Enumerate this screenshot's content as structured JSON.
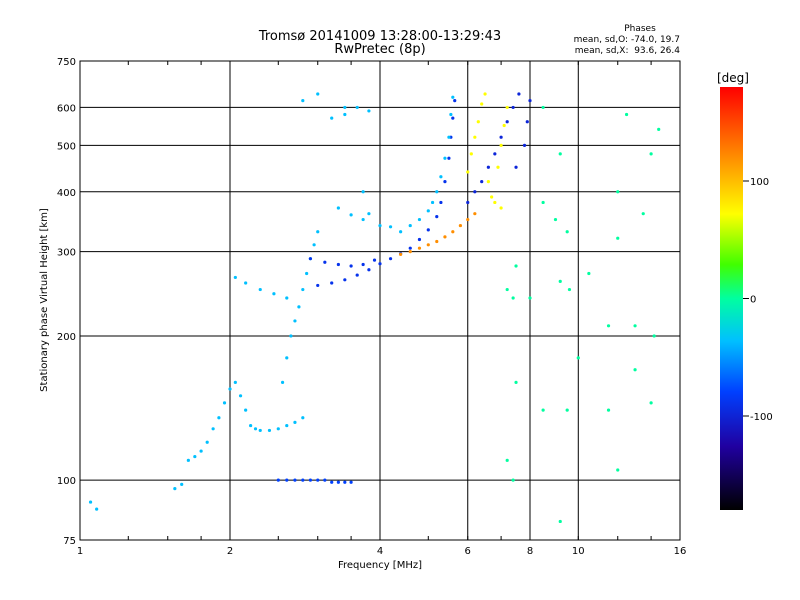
{
  "chart_data": {
    "type": "scatter",
    "title": "Tromsø 20141009 13:28:00-13:29:43",
    "subtitle": "RwPretec (8p)",
    "xlabel": "Frequency [MHz]",
    "ylabel": "Stationary phase Virtual Height [km]",
    "x_scale": "log",
    "y_scale": "log",
    "xlim": [
      1,
      16
    ],
    "ylim": [
      75,
      750
    ],
    "x_ticks": [
      1,
      2,
      4,
      6,
      8,
      10,
      16
    ],
    "y_ticks": [
      75,
      100,
      200,
      300,
      400,
      500,
      600,
      750
    ],
    "grid": true,
    "stats": {
      "heading": "Phases",
      "line_o": "mean, sd,O: -74.0, 19.7",
      "line_x": "mean, sd,X:  93.6, 26.4"
    },
    "colorbar": {
      "label": "[deg]",
      "range": [
        -180,
        180
      ],
      "ticks": [
        100,
        0,
        -100
      ],
      "colormap": "rainbow"
    },
    "series": [
      {
        "description": "O-mode low traces",
        "color_value": -40,
        "points": [
          [
            1.05,
            90
          ],
          [
            1.08,
            87
          ],
          [
            1.55,
            96
          ],
          [
            1.6,
            98
          ],
          [
            1.65,
            110
          ],
          [
            1.7,
            112
          ],
          [
            1.75,
            115
          ],
          [
            1.8,
            120
          ],
          [
            1.85,
            128
          ],
          [
            1.9,
            135
          ],
          [
            1.95,
            145
          ],
          [
            2.0,
            155
          ],
          [
            2.05,
            160
          ],
          [
            2.1,
            150
          ],
          [
            2.15,
            140
          ],
          [
            2.2,
            130
          ],
          [
            2.25,
            128
          ],
          [
            2.3,
            127
          ],
          [
            2.4,
            127
          ],
          [
            2.5,
            128
          ],
          [
            2.6,
            130
          ],
          [
            2.7,
            132
          ],
          [
            2.8,
            135
          ],
          [
            2.55,
            160
          ],
          [
            2.6,
            180
          ],
          [
            2.65,
            200
          ],
          [
            2.7,
            215
          ],
          [
            2.75,
            230
          ],
          [
            2.8,
            250
          ],
          [
            2.85,
            270
          ],
          [
            2.9,
            290
          ],
          [
            2.95,
            310
          ],
          [
            3.0,
            330
          ],
          [
            2.05,
            265
          ],
          [
            2.15,
            258
          ],
          [
            2.3,
            250
          ],
          [
            2.45,
            245
          ],
          [
            2.6,
            240
          ]
        ]
      },
      {
        "description": "E-layer flat trace",
        "color_value": -100,
        "points": [
          [
            2.5,
            100
          ],
          [
            2.6,
            100
          ],
          [
            2.7,
            100
          ],
          [
            2.8,
            100
          ],
          [
            2.9,
            100
          ],
          [
            3.0,
            100
          ],
          [
            3.1,
            100
          ],
          [
            3.2,
            99
          ],
          [
            3.3,
            99
          ],
          [
            3.4,
            99
          ],
          [
            3.5,
            99
          ]
        ]
      },
      {
        "description": "F-layer X trace",
        "color_value": -110,
        "points": [
          [
            3.0,
            255
          ],
          [
            3.2,
            258
          ],
          [
            3.4,
            262
          ],
          [
            3.6,
            268
          ],
          [
            3.8,
            275
          ],
          [
            4.0,
            283
          ],
          [
            4.2,
            290
          ],
          [
            4.4,
            297
          ],
          [
            4.6,
            305
          ],
          [
            4.8,
            318
          ],
          [
            5.0,
            333
          ],
          [
            5.2,
            355
          ],
          [
            5.3,
            380
          ],
          [
            5.4,
            420
          ],
          [
            5.5,
            470
          ],
          [
            5.55,
            520
          ],
          [
            5.6,
            570
          ],
          [
            5.65,
            620
          ],
          [
            2.9,
            290
          ],
          [
            3.1,
            285
          ],
          [
            3.3,
            282
          ],
          [
            3.5,
            280
          ],
          [
            3.7,
            282
          ],
          [
            3.9,
            288
          ]
        ]
      },
      {
        "description": "F-layer cyan traces",
        "color_value": -40,
        "points": [
          [
            4.4,
            330
          ],
          [
            4.6,
            340
          ],
          [
            4.8,
            350
          ],
          [
            5.0,
            365
          ],
          [
            5.1,
            380
          ],
          [
            5.2,
            400
          ],
          [
            5.3,
            430
          ],
          [
            5.4,
            470
          ],
          [
            5.5,
            520
          ],
          [
            5.55,
            580
          ],
          [
            5.6,
            630
          ],
          [
            3.7,
            400
          ],
          [
            3.8,
            360
          ],
          [
            4.0,
            340
          ],
          [
            4.2,
            338
          ],
          [
            3.3,
            370
          ],
          [
            3.5,
            358
          ],
          [
            3.7,
            350
          ],
          [
            3.2,
            570
          ],
          [
            3.4,
            580
          ],
          [
            3.6,
            600
          ],
          [
            3.8,
            590
          ],
          [
            2.8,
            620
          ],
          [
            3.0,
            640
          ],
          [
            3.4,
            600
          ]
        ]
      },
      {
        "description": "Orange trace",
        "color_value": 120,
        "points": [
          [
            4.4,
            296
          ],
          [
            4.6,
            300
          ],
          [
            4.8,
            305
          ],
          [
            5.0,
            310
          ],
          [
            5.2,
            315
          ],
          [
            5.4,
            322
          ],
          [
            5.6,
            330
          ],
          [
            5.8,
            340
          ],
          [
            6.0,
            350
          ],
          [
            6.2,
            360
          ]
        ]
      },
      {
        "description": "Yellow-green traces",
        "color_value": 80,
        "points": [
          [
            6.0,
            440
          ],
          [
            6.1,
            480
          ],
          [
            6.2,
            520
          ],
          [
            6.3,
            560
          ],
          [
            6.4,
            610
          ],
          [
            6.5,
            640
          ],
          [
            6.6,
            420
          ],
          [
            6.7,
            390
          ],
          [
            6.8,
            380
          ],
          [
            7.0,
            370
          ],
          [
            6.9,
            450
          ],
          [
            7.0,
            500
          ],
          [
            7.1,
            550
          ],
          [
            7.2,
            600
          ]
        ]
      },
      {
        "description": "Blue upper traces",
        "color_value": -120,
        "points": [
          [
            6.0,
            380
          ],
          [
            6.2,
            400
          ],
          [
            6.4,
            420
          ],
          [
            6.6,
            450
          ],
          [
            6.8,
            480
          ],
          [
            7.0,
            520
          ],
          [
            7.2,
            560
          ],
          [
            7.4,
            600
          ],
          [
            7.6,
            640
          ],
          [
            7.5,
            450
          ],
          [
            7.8,
            500
          ],
          [
            7.9,
            560
          ],
          [
            8.0,
            620
          ]
        ]
      },
      {
        "description": "Scattered points",
        "color_value": 0,
        "points": [
          [
            7.2,
            250
          ],
          [
            7.4,
            240
          ],
          [
            7.5,
            280
          ],
          [
            8.0,
            240
          ],
          [
            8.5,
            380
          ],
          [
            9.0,
            350
          ],
          [
            9.5,
            330
          ],
          [
            9.2,
            260
          ],
          [
            9.6,
            250
          ],
          [
            10.5,
            270
          ],
          [
            11.5,
            210
          ],
          [
            12.0,
            320
          ],
          [
            13.0,
            210
          ],
          [
            12.5,
            580
          ],
          [
            14.0,
            480
          ],
          [
            14.2,
            200
          ],
          [
            14.5,
            540
          ],
          [
            13.5,
            360
          ],
          [
            12.0,
            400
          ],
          [
            11.5,
            140
          ],
          [
            10.0,
            180
          ],
          [
            9.5,
            140
          ],
          [
            8.5,
            140
          ],
          [
            7.5,
            160
          ],
          [
            7.2,
            110
          ],
          [
            7.4,
            100
          ],
          [
            9.2,
            82
          ],
          [
            12.0,
            105
          ],
          [
            8.5,
            600
          ],
          [
            9.2,
            480
          ],
          [
            14.0,
            145
          ],
          [
            13.0,
            170
          ]
        ]
      }
    ]
  }
}
